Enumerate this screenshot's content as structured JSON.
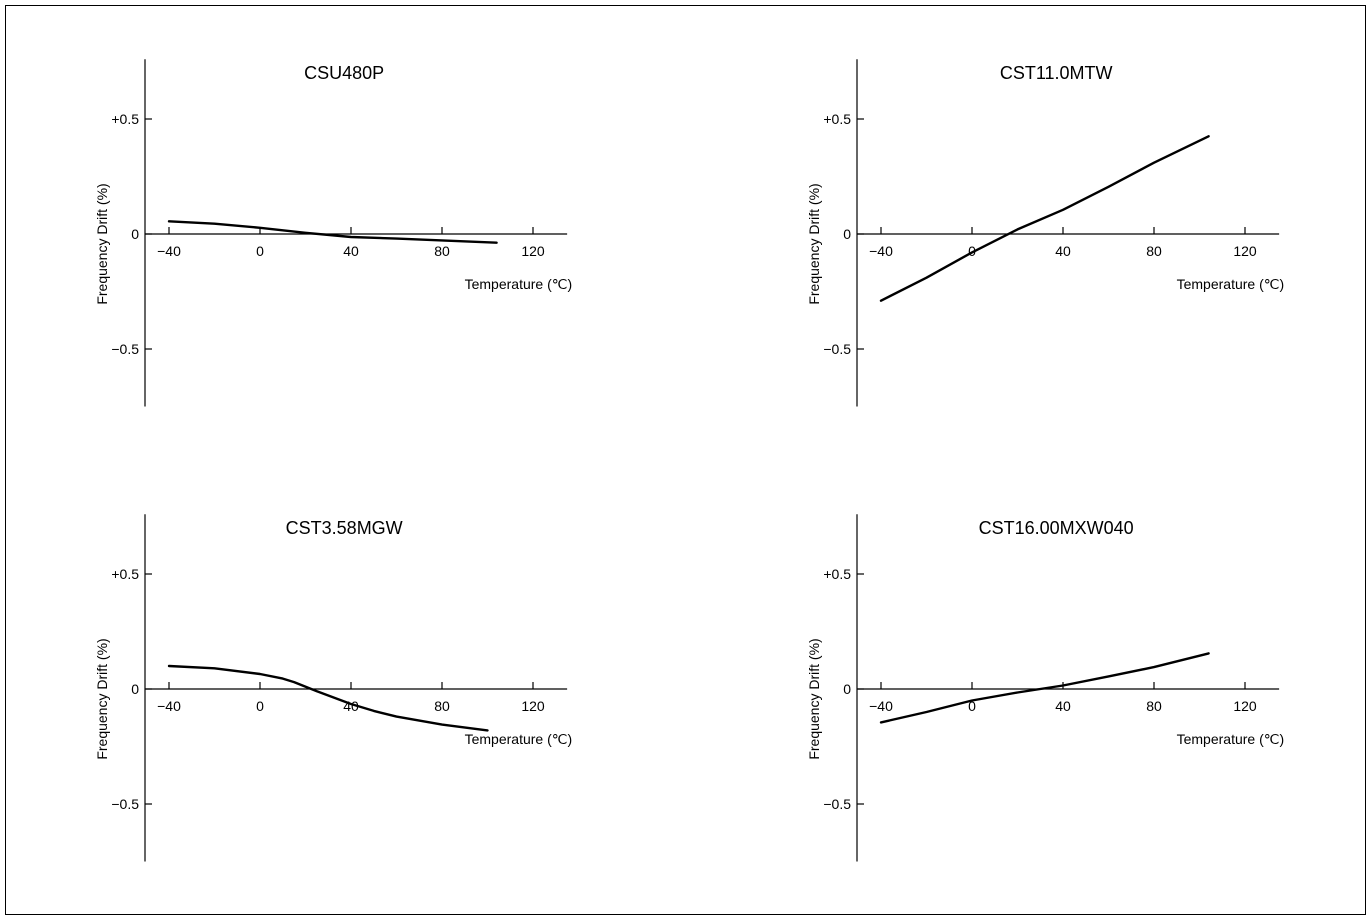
{
  "chart_data": [
    {
      "type": "line",
      "title": "CSU480P",
      "xlabel": "Temperature (℃)",
      "ylabel": "Frequency Drift (%)",
      "xticks": [
        -40,
        0,
        40,
        80,
        120
      ],
      "xtick_labels": [
        "−40",
        "0",
        "40",
        "80",
        "120"
      ],
      "yticks": [
        0.5,
        0,
        -0.5
      ],
      "ytick_labels": [
        "+0.5",
        "0",
        "−0.5"
      ],
      "xlim": [
        -50,
        135
      ],
      "ylim": [
        -0.75,
        0.76
      ],
      "grid": false,
      "series": [
        {
          "x": [
            -40,
            -20,
            0,
            20,
            40,
            60,
            80,
            104
          ],
          "y": [
            0.055,
            0.045,
            0.027,
            0.005,
            -0.013,
            -0.02,
            -0.028,
            -0.038
          ]
        }
      ]
    },
    {
      "type": "line",
      "title": "CST11.0MTW",
      "xlabel": "Temperature (℃)",
      "ylabel": "Frequency Drift (%)",
      "xticks": [
        -40,
        0,
        40,
        80,
        120
      ],
      "xtick_labels": [
        "−40",
        "0",
        "40",
        "80",
        "120"
      ],
      "yticks": [
        0.5,
        0,
        -0.5
      ],
      "ytick_labels": [
        "+0.5",
        "0",
        "−0.5"
      ],
      "xlim": [
        -50,
        135
      ],
      "ylim": [
        -0.75,
        0.76
      ],
      "grid": false,
      "series": [
        {
          "x": [
            -40,
            -20,
            0,
            20,
            40,
            60,
            80,
            104
          ],
          "y": [
            -0.29,
            -0.19,
            -0.08,
            0.02,
            0.105,
            0.205,
            0.31,
            0.425
          ]
        }
      ]
    },
    {
      "type": "line",
      "title": "CST3.58MGW",
      "xlabel": "Temperature (℃)",
      "ylabel": "Frequency Drift (%)",
      "xticks": [
        -40,
        0,
        40,
        80,
        120
      ],
      "xtick_labels": [
        "−40",
        "0",
        "40",
        "80",
        "120"
      ],
      "yticks": [
        0.5,
        0,
        -0.5
      ],
      "ytick_labels": [
        "+0.5",
        "0",
        "−0.5"
      ],
      "xlim": [
        -50,
        135
      ],
      "ylim": [
        -0.75,
        0.76
      ],
      "grid": false,
      "series": [
        {
          "x": [
            -40,
            -20,
            0,
            10,
            15,
            25,
            40,
            50,
            60,
            80,
            100
          ],
          "y": [
            0.1,
            0.09,
            0.065,
            0.045,
            0.03,
            -0.01,
            -0.065,
            -0.095,
            -0.12,
            -0.155,
            -0.18
          ]
        }
      ]
    },
    {
      "type": "line",
      "title": "CST16.00MXW040",
      "xlabel": "Temperature (℃)",
      "ylabel": "Frequency Drift (%)",
      "xticks": [
        -40,
        0,
        40,
        80,
        120
      ],
      "xtick_labels": [
        "−40",
        "0",
        "40",
        "80",
        "120"
      ],
      "yticks": [
        0.5,
        0,
        -0.5
      ],
      "ytick_labels": [
        "+0.5",
        "0",
        "−0.5"
      ],
      "xlim": [
        -50,
        135
      ],
      "ylim": [
        -0.75,
        0.76
      ],
      "grid": false,
      "series": [
        {
          "x": [
            -40,
            -20,
            0,
            20,
            40,
            60,
            80,
            104
          ],
          "y": [
            -0.145,
            -0.1,
            -0.05,
            -0.015,
            0.015,
            0.055,
            0.095,
            0.155
          ]
        }
      ]
    }
  ]
}
